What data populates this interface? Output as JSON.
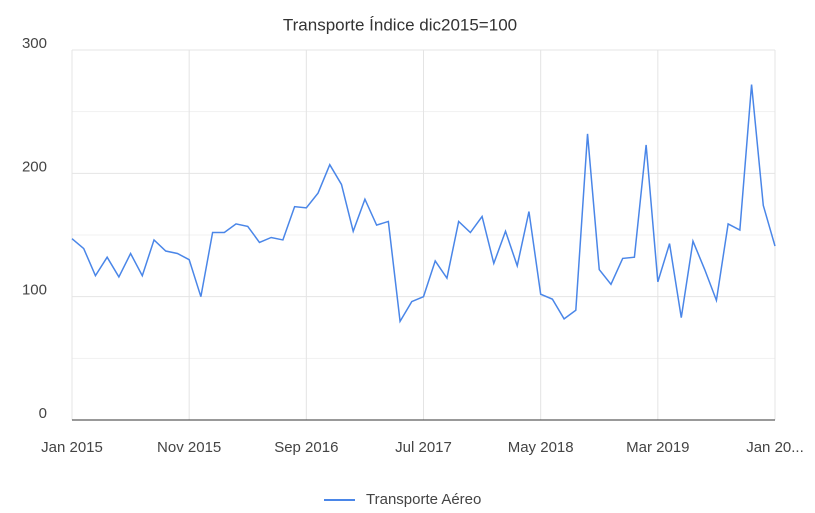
{
  "chart_data": {
    "type": "line",
    "title": "Transporte Índice dic2015=100",
    "categories": [
      "Jan 2015",
      null,
      null,
      null,
      null,
      null,
      null,
      null,
      null,
      null,
      "Nov 2015",
      null,
      null,
      null,
      null,
      null,
      null,
      null,
      null,
      null,
      "Sep 2016",
      null,
      null,
      null,
      null,
      null,
      null,
      null,
      null,
      null,
      "Jul 2017",
      null,
      null,
      null,
      null,
      null,
      null,
      null,
      null,
      null,
      "May 2018",
      null,
      null,
      null,
      null,
      null,
      null,
      null,
      null,
      null,
      "Mar 2019",
      null,
      null,
      null,
      null,
      null,
      null,
      null,
      null,
      null,
      "Jan 20..."
    ],
    "series": [
      {
        "name": "Transporte Aéreo",
        "color": "#4a86e8",
        "values": [
          147,
          139,
          117,
          132,
          116,
          135,
          117,
          146,
          137,
          135,
          130,
          100,
          152,
          152,
          159,
          157,
          144,
          148,
          146,
          173,
          172,
          184,
          207,
          191,
          153,
          179,
          158,
          161,
          80,
          96,
          100,
          129,
          115,
          161,
          152,
          165,
          127,
          153,
          125,
          169,
          102,
          98,
          82,
          89,
          232,
          122,
          110,
          131,
          132,
          223,
          112,
          143,
          83,
          145,
          122,
          97,
          159,
          154,
          272,
          174,
          141
        ]
      }
    ],
    "ylim": [
      0,
      300
    ],
    "yticks": [
      0,
      100,
      200,
      300
    ],
    "minor_yticks": [
      50,
      150,
      250
    ],
    "grid": true,
    "legend": "bottom"
  }
}
